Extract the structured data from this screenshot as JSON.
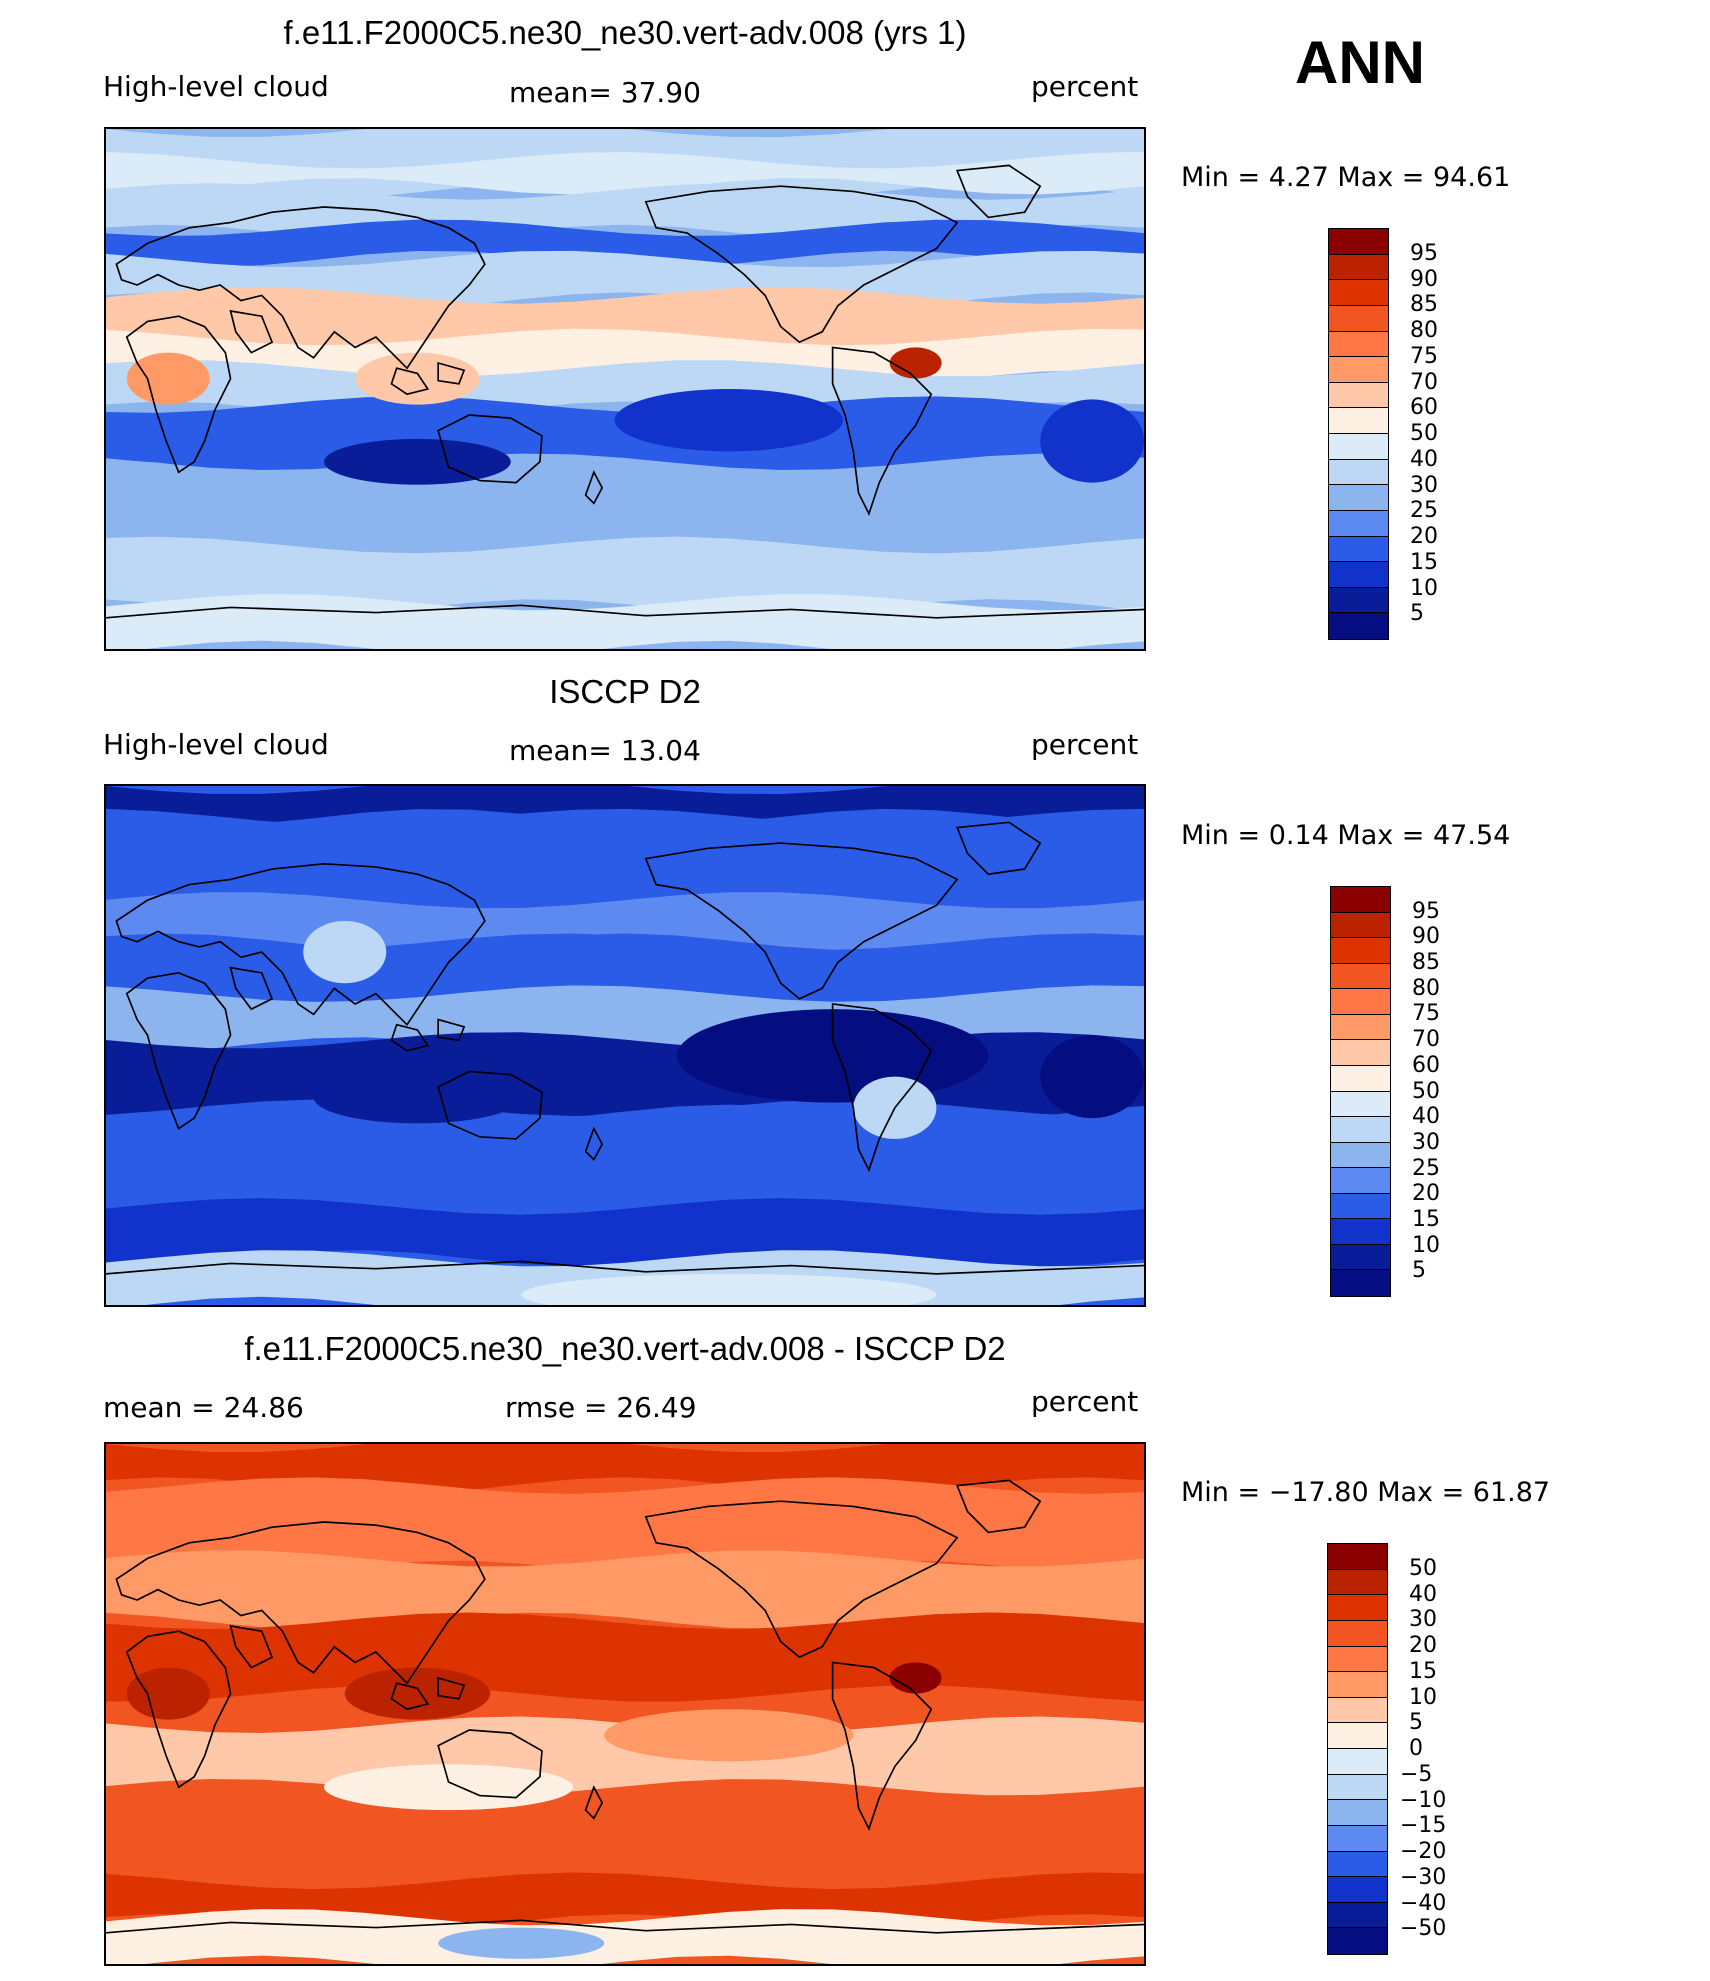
{
  "season": "ANN",
  "chart_data": [
    {
      "type": "heatmap",
      "title": "f.e11.F2000C5.ne30_ne30.vert-adv.008 (yrs 1)",
      "left_label": "High-level cloud",
      "center_label": "mean=   37.90",
      "right_label": "percent",
      "min_max": "Min  =     4.27  Max  =    94.61",
      "statistics": {
        "mean": 37.9,
        "min": 4.27,
        "max": 94.61
      },
      "colorbar_levels": [
        "95",
        "90",
        "85",
        "80",
        "75",
        "70",
        "60",
        "50",
        "40",
        "30",
        "25",
        "20",
        "15",
        "10",
        "5"
      ],
      "colors": [
        "#8b0000",
        "#bb2200",
        "#dd3300",
        "#f05522",
        "#ff7744",
        "#ff9966",
        "#ffc8a8",
        "#fff0e4",
        "#dcebf8",
        "#bcd8f5",
        "#8cb5f0",
        "#5c8af0",
        "#2a5ce8",
        "#1133cc",
        "#0a1d99",
        "#050e80"
      ],
      "field": "tropical-high"
    },
    {
      "type": "heatmap",
      "title": "ISCCP D2",
      "left_label": "High-level cloud",
      "center_label": "mean=   13.04",
      "right_label": "percent",
      "min_max": "Min  =     0.14  Max  =    47.54",
      "statistics": {
        "mean": 13.04,
        "min": 0.14,
        "max": 47.54
      },
      "colorbar_levels": [
        "95",
        "90",
        "85",
        "80",
        "75",
        "70",
        "60",
        "50",
        "40",
        "30",
        "25",
        "20",
        "15",
        "10",
        "5"
      ],
      "colors": [
        "#8b0000",
        "#bb2200",
        "#dd3300",
        "#f05522",
        "#ff7744",
        "#ff9966",
        "#ffc8a8",
        "#fff0e4",
        "#dcebf8",
        "#bcd8f5",
        "#8cb5f0",
        "#5c8af0",
        "#2a5ce8",
        "#1133cc",
        "#0a1d99",
        "#050e80"
      ],
      "field": "mostly-low"
    },
    {
      "type": "heatmap",
      "title": "f.e11.F2000C5.ne30_ne30.vert-adv.008 - ISCCP D2",
      "left_label": "mean  =    24.86",
      "center_label": "rmse  =    26.49",
      "right_label": "percent",
      "min_max": "Min  = −17.80  Max  =    61.87",
      "statistics": {
        "mean": 24.86,
        "rmse": 26.49,
        "min": -17.8,
        "max": 61.87
      },
      "colorbar_levels": [
        "50",
        "40",
        "30",
        "20",
        "15",
        "10",
        "5",
        "0",
        "−5",
        "−10",
        "−15",
        "−20",
        "−30",
        "−40",
        "−50"
      ],
      "colors": [
        "#8b0000",
        "#bb2200",
        "#dd3300",
        "#f05522",
        "#ff7744",
        "#ff9966",
        "#ffc8a8",
        "#fff0e4",
        "#dcebf8",
        "#bcd8f5",
        "#8cb5f0",
        "#5c8af0",
        "#2a5ce8",
        "#1133cc",
        "#0a1d99",
        "#050e80"
      ],
      "field": "positive-diff"
    }
  ]
}
